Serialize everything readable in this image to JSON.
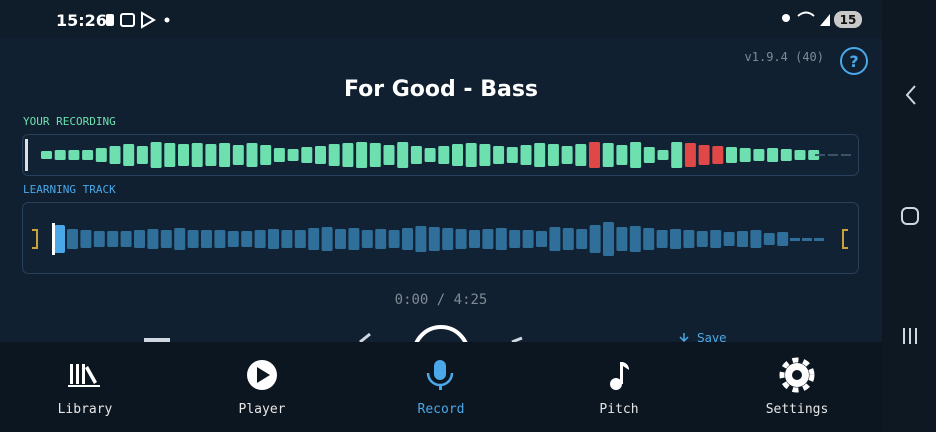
{
  "status_bar": {
    "time": "15:26",
    "battery": "15"
  },
  "header": {
    "version": "v1.9.4 (40)",
    "help": "?",
    "title": "For Good - Bass"
  },
  "recording": {
    "label": "YOUR RECORDING"
  },
  "learning": {
    "label": "LEARNING TRACK"
  },
  "playback": {
    "time": "0:00 / 4:25",
    "save": "Save"
  },
  "nav": {
    "items": [
      "Library",
      "Player",
      "Record",
      "Pitch",
      "Settings"
    ]
  }
}
